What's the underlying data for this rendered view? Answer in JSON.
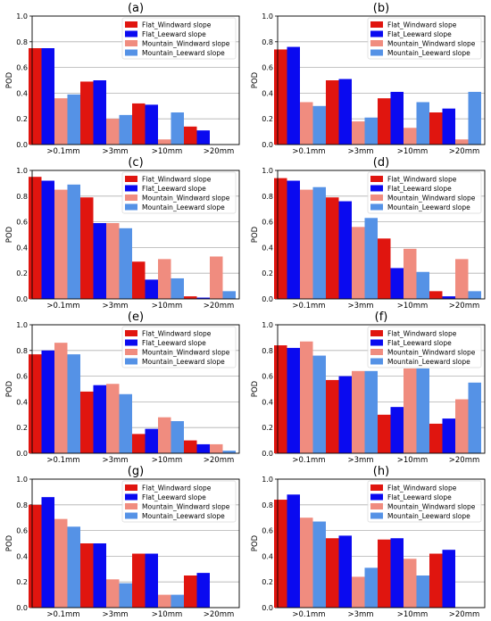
{
  "colors": {
    "Flat_Windward slope": "#e0150f",
    "Flat_Leeward slope": "#0a0af0",
    "Mountain_Windward slope": "#f08c7f",
    "Mountain_Leeward slope": "#5592e6"
  },
  "chart_data": [
    {
      "type": "bar",
      "panel": "a",
      "title": "(a)",
      "ylabel": "POD",
      "ylim": [
        0,
        1.0
      ],
      "yticks": [
        "0.0",
        "0.2",
        "0.4",
        "0.6",
        "0.8",
        "1.0"
      ],
      "categories": [
        ">0.1mm",
        ">3mm",
        ">10mm",
        ">20mm"
      ],
      "series": [
        {
          "name": "Flat_Windward slope",
          "values": [
            0.75,
            0.49,
            0.32,
            0.14
          ]
        },
        {
          "name": "Flat_Leeward slope",
          "values": [
            0.75,
            0.5,
            0.31,
            0.11
          ]
        },
        {
          "name": "Mountain_Windward slope",
          "values": [
            0.36,
            0.2,
            0.04,
            0.0
          ]
        },
        {
          "name": "Mountain_Leeward slope",
          "values": [
            0.39,
            0.23,
            0.25,
            0.0
          ]
        }
      ]
    },
    {
      "type": "bar",
      "panel": "b",
      "title": "(b)",
      "ylabel": "POD",
      "ylim": [
        0,
        1.0
      ],
      "yticks": [
        "0.0",
        "0.2",
        "0.4",
        "0.6",
        "0.8",
        "1.0"
      ],
      "categories": [
        ">0.1mm",
        ">3mm",
        ">10mm",
        ">20mm"
      ],
      "series": [
        {
          "name": "Flat_Windward slope",
          "values": [
            0.74,
            0.5,
            0.36,
            0.25
          ]
        },
        {
          "name": "Flat_Leeward slope",
          "values": [
            0.76,
            0.51,
            0.41,
            0.28
          ]
        },
        {
          "name": "Mountain_Windward slope",
          "values": [
            0.33,
            0.18,
            0.13,
            0.04
          ]
        },
        {
          "name": "Mountain_Leeward slope",
          "values": [
            0.3,
            0.21,
            0.33,
            0.41
          ]
        }
      ]
    },
    {
      "type": "bar",
      "panel": "c",
      "title": "(c)",
      "ylabel": "POD",
      "ylim": [
        0,
        1.0
      ],
      "yticks": [
        "0.0",
        "0.2",
        "0.4",
        "0.6",
        "0.8",
        "1.0"
      ],
      "categories": [
        ">0.1mm",
        ">3mm",
        ">10mm",
        ">20mm"
      ],
      "series": [
        {
          "name": "Flat_Windward slope",
          "values": [
            0.95,
            0.79,
            0.29,
            0.02
          ]
        },
        {
          "name": "Flat_Leeward slope",
          "values": [
            0.92,
            0.59,
            0.15,
            0.01
          ]
        },
        {
          "name": "Mountain_Windward slope",
          "values": [
            0.85,
            0.59,
            0.31,
            0.33
          ]
        },
        {
          "name": "Mountain_Leeward slope",
          "values": [
            0.89,
            0.55,
            0.16,
            0.06
          ]
        }
      ]
    },
    {
      "type": "bar",
      "panel": "d",
      "title": "(d)",
      "ylabel": "POD",
      "ylim": [
        0,
        1.0
      ],
      "yticks": [
        "0.0",
        "0.2",
        "0.4",
        "0.6",
        "0.8",
        "1.0"
      ],
      "categories": [
        ">0.1mm",
        ">3mm",
        ">10mm",
        ">20mm"
      ],
      "series": [
        {
          "name": "Flat_Windward slope",
          "values": [
            0.94,
            0.79,
            0.47,
            0.06
          ]
        },
        {
          "name": "Flat_Leeward slope",
          "values": [
            0.92,
            0.76,
            0.24,
            0.02
          ]
        },
        {
          "name": "Mountain_Windward slope",
          "values": [
            0.85,
            0.56,
            0.39,
            0.31
          ]
        },
        {
          "name": "Mountain_Leeward slope",
          "values": [
            0.87,
            0.63,
            0.21,
            0.06
          ]
        }
      ]
    },
    {
      "type": "bar",
      "panel": "e",
      "title": "(e)",
      "ylabel": "POD",
      "ylim": [
        0,
        1.0
      ],
      "yticks": [
        "0.0",
        "0.2",
        "0.4",
        "0.6",
        "0.8",
        "1.0"
      ],
      "categories": [
        ">0.1mm",
        ">3mm",
        ">10mm",
        ">20mm"
      ],
      "series": [
        {
          "name": "Flat_Windward slope",
          "values": [
            0.77,
            0.48,
            0.15,
            0.1
          ]
        },
        {
          "name": "Flat_Leeward slope",
          "values": [
            0.8,
            0.53,
            0.19,
            0.07
          ]
        },
        {
          "name": "Mountain_Windward slope",
          "values": [
            0.86,
            0.54,
            0.28,
            0.07
          ]
        },
        {
          "name": "Mountain_Leeward slope",
          "values": [
            0.77,
            0.46,
            0.25,
            0.02
          ]
        }
      ]
    },
    {
      "type": "bar",
      "panel": "f",
      "title": "(f)",
      "ylabel": "POD",
      "ylim": [
        0,
        1.0
      ],
      "yticks": [
        "0.0",
        "0.2",
        "0.4",
        "0.6",
        "0.8",
        "1.0"
      ],
      "categories": [
        ">0.1mm",
        ">3mm",
        ">10mm",
        ">20mm"
      ],
      "series": [
        {
          "name": "Flat_Windward slope",
          "values": [
            0.84,
            0.57,
            0.3,
            0.23
          ]
        },
        {
          "name": "Flat_Leeward slope",
          "values": [
            0.82,
            0.6,
            0.36,
            0.27
          ]
        },
        {
          "name": "Mountain_Windward slope",
          "values": [
            0.87,
            0.64,
            0.66,
            0.42
          ]
        },
        {
          "name": "Mountain_Leeward slope",
          "values": [
            0.76,
            0.64,
            0.66,
            0.55
          ]
        }
      ]
    },
    {
      "type": "bar",
      "panel": "g",
      "title": "(g)",
      "ylabel": "POD",
      "ylim": [
        0,
        1.0
      ],
      "yticks": [
        "0.0",
        "0.2",
        "0.4",
        "0.6",
        "0.8",
        "1.0"
      ],
      "categories": [
        ">0.1mm",
        ">3mm",
        ">10mm",
        ">20mm"
      ],
      "series": [
        {
          "name": "Flat_Windward slope",
          "values": [
            0.8,
            0.5,
            0.42,
            0.25
          ]
        },
        {
          "name": "Flat_Leeward slope",
          "values": [
            0.86,
            0.5,
            0.42,
            0.27
          ]
        },
        {
          "name": "Mountain_Windward slope",
          "values": [
            0.69,
            0.22,
            0.1,
            0.0
          ]
        },
        {
          "name": "Mountain_Leeward slope",
          "values": [
            0.63,
            0.19,
            0.1,
            0.0
          ]
        }
      ]
    },
    {
      "type": "bar",
      "panel": "h",
      "title": "(h)",
      "ylabel": "POD",
      "ylim": [
        0,
        1.0
      ],
      "yticks": [
        "0.0",
        "0.2",
        "0.4",
        "0.6",
        "0.8",
        "1.0"
      ],
      "categories": [
        ">0.1mm",
        ">3mm",
        ">10mm",
        ">20mm"
      ],
      "series": [
        {
          "name": "Flat_Windward slope",
          "values": [
            0.84,
            0.54,
            0.53,
            0.42
          ]
        },
        {
          "name": "Flat_Leeward slope",
          "values": [
            0.88,
            0.56,
            0.54,
            0.45
          ]
        },
        {
          "name": "Mountain_Windward slope",
          "values": [
            0.7,
            0.24,
            0.38,
            0.0
          ]
        },
        {
          "name": "Mountain_Leeward slope",
          "values": [
            0.67,
            0.31,
            0.25,
            0.0
          ]
        }
      ]
    }
  ]
}
